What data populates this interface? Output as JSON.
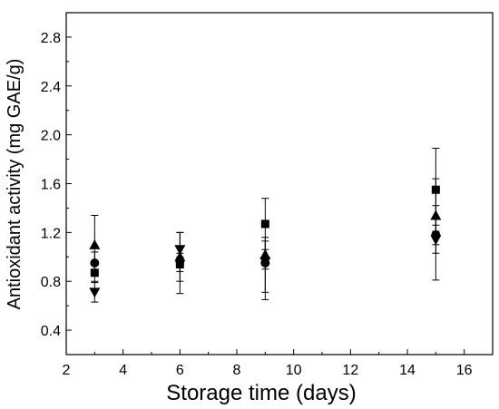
{
  "chart_data": {
    "type": "scatter",
    "title": "",
    "xlabel": "Storage time (days)",
    "ylabel": "Antioxidant activity (mg GAE/g)",
    "xlim": [
      2,
      17
    ],
    "ylim": [
      0.2,
      3.0
    ],
    "xticks": [
      2,
      4,
      6,
      8,
      10,
      12,
      14,
      16
    ],
    "yticks": [
      0.4,
      0.8,
      1.2,
      1.6,
      2.0,
      2.4,
      2.8
    ],
    "grid": false,
    "legend": "none",
    "series": [
      {
        "marker": "square",
        "color": "#000000",
        "points": [
          {
            "x": 3,
            "y": 0.87,
            "err_low": 0.79,
            "err_high": 0.96
          },
          {
            "x": 6,
            "y": 0.94,
            "err_low": 0.88,
            "err_high": 1.0
          },
          {
            "x": 9,
            "y": 1.27,
            "err_low": 1.06,
            "err_high": 1.48
          },
          {
            "x": 15,
            "y": 1.55,
            "err_low": 1.21,
            "err_high": 1.89
          }
        ]
      },
      {
        "marker": "circle",
        "color": "#000000",
        "points": [
          {
            "x": 3,
            "y": 0.95,
            "err_low": 0.86,
            "err_high": 1.04
          },
          {
            "x": 6,
            "y": 0.97,
            "err_low": 0.91,
            "err_high": 1.03
          },
          {
            "x": 9,
            "y": 0.95,
            "err_low": 0.9,
            "err_high": 1.0
          },
          {
            "x": 15,
            "y": 1.18,
            "err_low": 1.1,
            "err_high": 1.26
          }
        ]
      },
      {
        "marker": "triangle-up",
        "color": "#000000",
        "points": [
          {
            "x": 3,
            "y": 1.1,
            "err_low": 0.86,
            "err_high": 1.34
          },
          {
            "x": 6,
            "y": 1.0,
            "err_low": 0.8,
            "err_high": 1.2
          },
          {
            "x": 9,
            "y": 1.02,
            "err_low": 0.71,
            "err_high": 1.16
          },
          {
            "x": 15,
            "y": 1.34,
            "err_low": 1.03,
            "err_high": 1.64
          }
        ]
      },
      {
        "marker": "triangle-down",
        "color": "#000000",
        "points": [
          {
            "x": 3,
            "y": 0.71,
            "err_low": 0.63,
            "err_high": 0.8
          },
          {
            "x": 6,
            "y": 1.06,
            "err_low": 0.7,
            "err_high": 1.2
          },
          {
            "x": 9,
            "y": 0.96,
            "err_low": 0.65,
            "err_high": 1.13
          },
          {
            "x": 15,
            "y": 1.14,
            "err_low": 0.81,
            "err_high": 1.42
          }
        ]
      }
    ]
  }
}
